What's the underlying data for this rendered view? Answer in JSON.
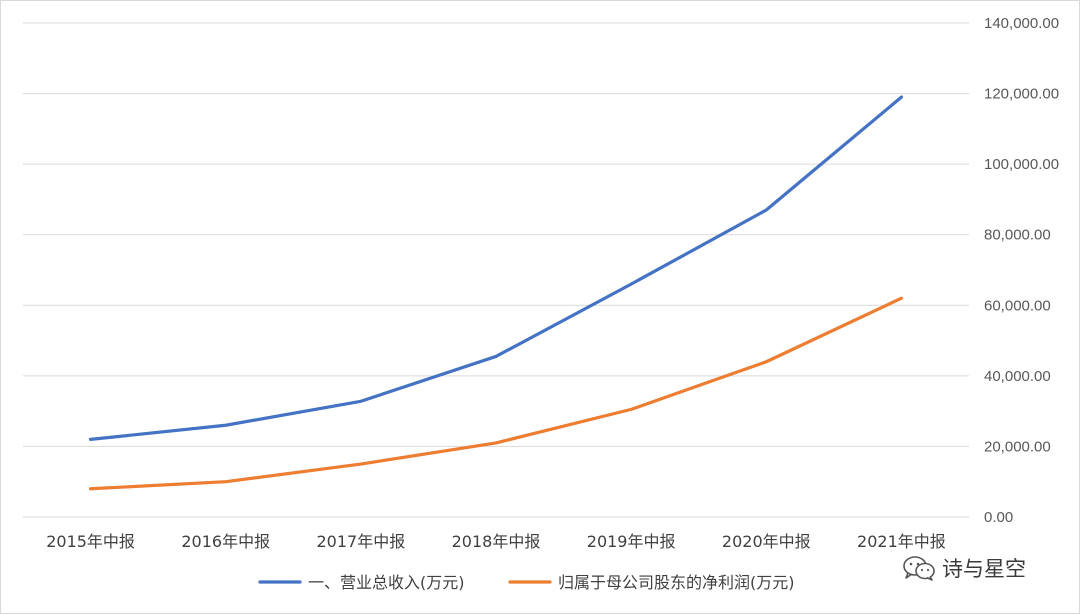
{
  "chart_data": {
    "type": "line",
    "categories": [
      "2015年中报",
      "2016年中报",
      "2017年中报",
      "2018年中报",
      "2019年中报",
      "2020年中报",
      "2021年中报"
    ],
    "series": [
      {
        "name": "一、营业总收入(万元)",
        "color": "#4472C4",
        "values": [
          22000,
          26000,
          32800,
          45500,
          66000,
          87000,
          119000
        ]
      },
      {
        "name": "归属于母公司股东的净利润(万元)",
        "color": "#ED7D31",
        "values": [
          8000,
          10000,
          15000,
          21000,
          30500,
          44000,
          62000
        ]
      }
    ],
    "yticks": [
      "0.00",
      "20,000.00",
      "40,000.00",
      "60,000.00",
      "80,000.00",
      "100,000.00",
      "120,000.00",
      "140,000.00"
    ],
    "ylim": [
      0,
      140000
    ],
    "y_axis_side": "right",
    "grid": true,
    "legend_position": "bottom",
    "title": "",
    "xlabel": "",
    "ylabel": ""
  },
  "watermark": {
    "text": "诗与星空",
    "icon": "wechat-icon"
  }
}
